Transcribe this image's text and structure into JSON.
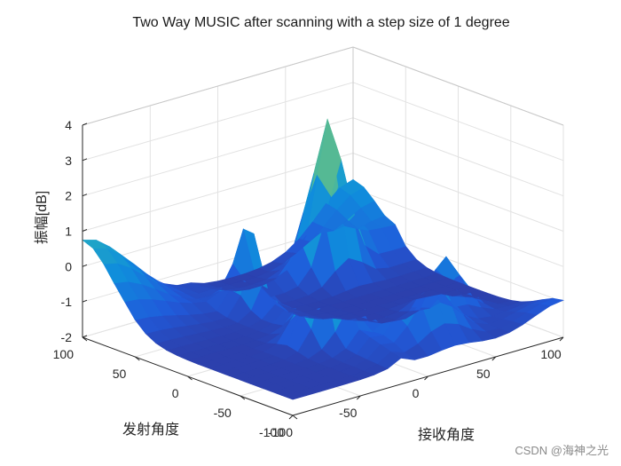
{
  "chart_data": {
    "type": "surface",
    "title": "Two Way MUSIC after scanning with a step size of 1 degree",
    "xlabel": "接收角度",
    "ylabel": "发射角度",
    "zlabel": "振幅[dB]",
    "xlim": [
      -100,
      100
    ],
    "ylim": [
      -100,
      100
    ],
    "zlim": [
      -2,
      4
    ],
    "x_ticks": [
      "-100",
      "-50",
      "0",
      "50",
      "100"
    ],
    "y_ticks": [
      "-100",
      "-50",
      "0",
      "50",
      "100"
    ],
    "z_ticks": [
      "-2",
      "-1",
      "0",
      "1",
      "2",
      "3",
      "4"
    ],
    "step_deg": 1,
    "grid": true,
    "colormap": "parula",
    "surface_samples": {
      "corner_x-90_y90": 0.7,
      "corner_x90_y90": 0.2,
      "corner_x90_y-90": -1.1,
      "peak_x-20_y-30": 3.2,
      "peak_x50_y60": 2.8,
      "bump_x20_y-70": 0.9
    }
  },
  "watermark": "CSDN @海神之光"
}
